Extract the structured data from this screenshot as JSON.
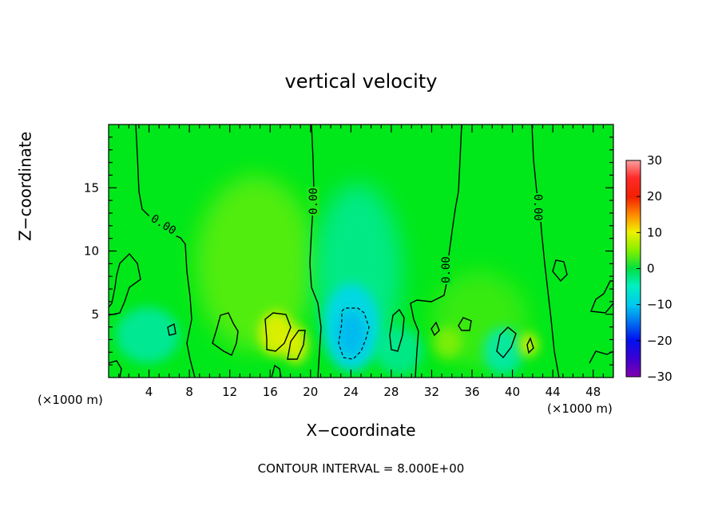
{
  "chart_data": {
    "type": "heatmap",
    "title": "vertical velocity",
    "xlabel": "X−coordinate",
    "ylabel": "Z−coordinate",
    "x_unit_left": "(×1000 m)",
    "x_unit_right": "(×1000 m)",
    "footer": "CONTOUR INTERVAL = 8.000E+00",
    "xlim": [
      0,
      50
    ],
    "ylim": [
      0,
      20
    ],
    "x_ticks": [
      "4",
      "8",
      "12",
      "16",
      "20",
      "24",
      "28",
      "32",
      "36",
      "40",
      "44",
      "48"
    ],
    "y_ticks": [
      "5",
      "10",
      "15"
    ],
    "colorbar": {
      "range": [
        -30,
        30
      ],
      "ticks": [
        "30",
        "20",
        "10",
        "0",
        "−10",
        "−20",
        "−30"
      ]
    },
    "contour_labels": [
      "0.00",
      "0.00",
      "0.00",
      "0.00"
    ],
    "features": [
      {
        "x": 17,
        "z": 3.5,
        "value": 10
      },
      {
        "x": 19,
        "z": 3,
        "value": 12
      },
      {
        "x": 24.5,
        "z": 3.5,
        "value": -8
      },
      {
        "x": 3,
        "z": 2,
        "value": -5
      },
      {
        "x": 38,
        "z": 2.5,
        "value": -4
      },
      {
        "x": 41,
        "z": 2.5,
        "value": 8
      }
    ]
  }
}
